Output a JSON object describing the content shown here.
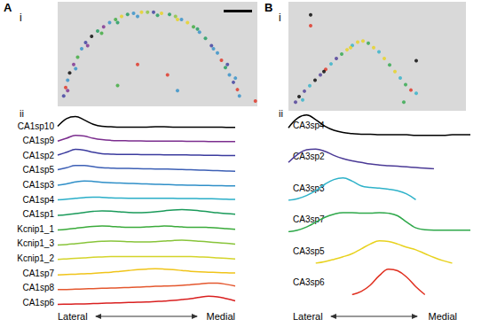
{
  "chart_data": [
    {
      "panel": "A",
      "label": "i",
      "type": "scatter",
      "marker": "circle",
      "tick_labels": false,
      "xlim": [
        0,
        100
      ],
      "ylim": [
        0,
        100
      ],
      "x": [
        3,
        4,
        5,
        6,
        8,
        10,
        12,
        14,
        17,
        20,
        23,
        26,
        29,
        32,
        35,
        38,
        42,
        45,
        48,
        52,
        56,
        59,
        62,
        65,
        68,
        71,
        74,
        77,
        80,
        82,
        84,
        86,
        88,
        90,
        91,
        40,
        55,
        30,
        60,
        99,
        5,
        9,
        15,
        22,
        30,
        40,
        50,
        60,
        70,
        78,
        85,
        89
      ],
      "y": [
        10,
        18,
        25,
        32,
        40,
        47,
        55,
        61,
        67,
        72,
        76,
        80,
        83,
        86,
        88,
        89,
        90,
        90,
        90,
        89,
        88,
        86,
        83,
        80,
        76,
        71,
        65,
        58,
        51,
        44,
        37,
        30,
        23,
        16,
        10,
        40,
        30,
        20,
        15,
        5,
        15,
        36,
        58,
        70,
        80,
        86,
        87,
        83,
        74,
        55,
        40,
        27
      ],
      "colors": [
        "#3b3b9e",
        "#e03020",
        "#2f8fc8",
        "#000000",
        "#7b2d8e",
        "#3aaa3a",
        "#2f8fc8",
        "#3b3b9e",
        "#000000",
        "#1a9a5a",
        "#7b2d8e",
        "#2f8fc8",
        "#3aaa3a",
        "#e8d21e",
        "#1a9a5a",
        "#2f8fc8",
        "#e8d21e",
        "#88c43a",
        "#3b3b9e",
        "#e8d21e",
        "#1a9a5a",
        "#88c43a",
        "#2f8fc8",
        "#e8d21e",
        "#3aaa3a",
        "#2f8fc8",
        "#1a9a5a",
        "#3b3b9e",
        "#2f8fc8",
        "#e03020",
        "#1a9a5a",
        "#2f8fc8",
        "#3b3b9e",
        "#e03020",
        "#2f8fc8",
        "#e03020",
        "#e03020",
        "#3aaa3a",
        "#2f8fc8",
        "#e03020",
        "#7b2d8e",
        "#2f8fc8",
        "#7b2d8e",
        "#3aaa3a",
        "#1a9a5a",
        "#2f8fc8",
        "#1a9a5a",
        "#e8d21e",
        "#1a9a5a",
        "#2f8fc8",
        "#3b3b9e",
        "#2f8fc8"
      ]
    },
    {
      "label": "ii",
      "type": "line",
      "line_style": "solid",
      "tick_labels": false,
      "xlim": [
        0,
        1
      ],
      "ylim": [
        0,
        1
      ],
      "annotations": [
        "Lateral",
        "Medial"
      ],
      "x": [
        0,
        0.05,
        0.1,
        0.15,
        0.2,
        0.25,
        0.3,
        0.35,
        0.4,
        0.45,
        0.5,
        0.55,
        0.6,
        0.65,
        0.7,
        0.75,
        0.8,
        0.85,
        0.9,
        0.95,
        1
      ],
      "series": [
        {
          "name": "CA1sp10",
          "color": "#000000",
          "values": [
            0.15,
            0.7,
            0.85,
            0.6,
            0.3,
            0.15,
            0.12,
            0.1,
            0.1,
            0.1,
            0.1,
            0.12,
            0.12,
            0.1,
            0.1,
            0.1,
            0.1,
            0.1,
            0.1,
            0.08,
            0.08
          ]
        },
        {
          "name": "CA1sp9",
          "color": "#7b2d8e",
          "values": [
            0.15,
            0.35,
            0.55,
            0.5,
            0.35,
            0.25,
            0.2,
            0.18,
            0.17,
            0.16,
            0.15,
            0.15,
            0.15,
            0.14,
            0.14,
            0.13,
            0.13,
            0.12,
            0.12,
            0.12,
            0.12
          ]
        },
        {
          "name": "CA1sp2",
          "color": "#3b3b9e",
          "values": [
            0.2,
            0.4,
            0.6,
            0.55,
            0.4,
            0.3,
            0.27,
            0.25,
            0.25,
            0.24,
            0.23,
            0.23,
            0.22,
            0.22,
            0.22,
            0.2,
            0.2,
            0.18,
            0.18,
            0.17,
            0.17
          ]
        },
        {
          "name": "CA1sp5",
          "color": "#3c5fb5",
          "values": [
            0.2,
            0.35,
            0.5,
            0.5,
            0.42,
            0.35,
            0.32,
            0.3,
            0.3,
            0.28,
            0.27,
            0.26,
            0.25,
            0.24,
            0.22,
            0.2,
            0.18,
            0.16,
            0.14,
            0.12,
            0.1
          ]
        },
        {
          "name": "CA1sp3",
          "color": "#2f8fc8",
          "values": [
            0.15,
            0.25,
            0.38,
            0.45,
            0.42,
            0.36,
            0.32,
            0.3,
            0.28,
            0.26,
            0.24,
            0.22,
            0.2,
            0.18,
            0.16,
            0.15,
            0.14,
            0.13,
            0.12,
            0.11,
            0.1
          ]
        },
        {
          "name": "CA1sp4",
          "color": "#2aaec8",
          "values": [
            0.15,
            0.2,
            0.26,
            0.32,
            0.35,
            0.33,
            0.3,
            0.28,
            0.27,
            0.27,
            0.27,
            0.27,
            0.26,
            0.26,
            0.25,
            0.25,
            0.24,
            0.23,
            0.22,
            0.2,
            0.18
          ]
        },
        {
          "name": "CA1sp1",
          "color": "#1a9a5a",
          "values": [
            0.1,
            0.15,
            0.22,
            0.3,
            0.38,
            0.42,
            0.4,
            0.35,
            0.3,
            0.28,
            0.3,
            0.35,
            0.42,
            0.48,
            0.5,
            0.48,
            0.42,
            0.35,
            0.28,
            0.22,
            0.18
          ]
        },
        {
          "name": "Kcnip1_1",
          "color": "#3aaa3a",
          "values": [
            0.1,
            0.15,
            0.22,
            0.3,
            0.36,
            0.38,
            0.36,
            0.32,
            0.3,
            0.3,
            0.32,
            0.35,
            0.38,
            0.36,
            0.32,
            0.3,
            0.3,
            0.28,
            0.25,
            0.2,
            0.15
          ]
        },
        {
          "name": "Kcnip1_3",
          "color": "#88c43a",
          "values": [
            0.08,
            0.12,
            0.18,
            0.24,
            0.3,
            0.34,
            0.36,
            0.35,
            0.32,
            0.3,
            0.3,
            0.32,
            0.36,
            0.4,
            0.42,
            0.4,
            0.35,
            0.3,
            0.25,
            0.2,
            0.15
          ]
        },
        {
          "name": "Kcnip1_2",
          "color": "#d4d42a",
          "values": [
            0.1,
            0.14,
            0.18,
            0.22,
            0.26,
            0.28,
            0.3,
            0.3,
            0.3,
            0.3,
            0.3,
            0.3,
            0.3,
            0.3,
            0.3,
            0.3,
            0.28,
            0.26,
            0.22,
            0.18,
            0.14
          ]
        },
        {
          "name": "CA1sp7",
          "color": "#f0c419",
          "values": [
            0.05,
            0.08,
            0.1,
            0.13,
            0.16,
            0.2,
            0.24,
            0.3,
            0.36,
            0.42,
            0.46,
            0.48,
            0.46,
            0.42,
            0.36,
            0.3,
            0.26,
            0.24,
            0.22,
            0.2,
            0.18
          ]
        },
        {
          "name": "CA1sp8",
          "color": "#e4572e",
          "values": [
            0.05,
            0.06,
            0.08,
            0.1,
            0.12,
            0.14,
            0.16,
            0.18,
            0.2,
            0.22,
            0.25,
            0.28,
            0.3,
            0.32,
            0.35,
            0.4,
            0.45,
            0.5,
            0.5,
            0.42,
            0.3
          ]
        },
        {
          "name": "CA1sp6",
          "color": "#d92020",
          "values": [
            0.05,
            0.06,
            0.07,
            0.08,
            0.1,
            0.12,
            0.14,
            0.16,
            0.18,
            0.2,
            0.22,
            0.25,
            0.28,
            0.32,
            0.38,
            0.45,
            0.55,
            0.62,
            0.58,
            0.45,
            0.3
          ]
        }
      ]
    },
    {
      "panel": "B",
      "label": "i",
      "type": "scatter",
      "marker": "circle",
      "tick_labels": false,
      "xlim": [
        0,
        100
      ],
      "ylim": [
        0,
        100
      ],
      "x": [
        4,
        6,
        9,
        12,
        15,
        18,
        21,
        24,
        27,
        30,
        33,
        36,
        39,
        42,
        45,
        48,
        51,
        54,
        57,
        60,
        63,
        66,
        69,
        72,
        12.5,
        12.5,
        72,
        65,
        8,
        20,
        35
      ],
      "y": [
        8,
        13,
        18,
        23,
        28,
        33,
        38,
        43,
        48,
        52,
        56,
        60,
        63,
        64,
        62,
        58,
        54,
        48,
        42,
        36,
        30,
        24,
        19,
        16,
        88,
        78,
        46,
        8,
        10,
        36,
        58
      ],
      "colors": [
        "#4b3a96",
        "#000000",
        "#4b3a96",
        "#2fb2c9",
        "#000000",
        "#4b3a96",
        "#e03020",
        "#2fb2c9",
        "#4b3a96",
        "#2ea84a",
        "#e8d21e",
        "#2fb2c9",
        "#e8d21e",
        "#e8d21e",
        "#2ea84a",
        "#e8d21e",
        "#2fb2c9",
        "#e8d21e",
        "#2ea84a",
        "#e8d21e",
        "#2fb2c9",
        "#2ea84a",
        "#e03020",
        "#2fb2c9",
        "#000000",
        "#e03020",
        "#000000",
        "#2ea84a",
        "#2fb2c9",
        "#000000",
        "#e8d21e"
      ]
    },
    {
      "label": "ii",
      "type": "line",
      "line_style": "solid",
      "tick_labels": false,
      "xlim": [
        0,
        1
      ],
      "ylim": [
        0,
        1
      ],
      "annotations": [
        "Lateral",
        "Medial"
      ],
      "x": [
        0,
        0.05,
        0.1,
        0.15,
        0.2,
        0.25,
        0.3,
        0.35,
        0.4,
        0.45,
        0.5,
        0.55,
        0.6,
        0.65,
        0.7,
        0.75,
        0.8,
        0.85,
        0.9,
        0.95,
        1
      ],
      "series": [
        {
          "name": "CA3sp4",
          "color": "#000000",
          "values": [
            0.3,
            0.6,
            0.7,
            0.55,
            0.35,
            0.22,
            0.15,
            0.12,
            0.1,
            0.1,
            0.08,
            0.08,
            0.08,
            0.08,
            0.06,
            0.06,
            0.06,
            0.06,
            0.08,
            0.08,
            0.08
          ]
        },
        {
          "name": "CA3sp2",
          "color": "#4b3a96",
          "values": [
            0.2,
            0.45,
            0.6,
            0.62,
            0.55,
            0.42,
            0.32,
            0.25,
            0.2,
            0.15,
            0.12,
            0.1,
            0.08,
            0.06,
            0.04,
            0.02,
            0,
            null,
            null,
            null,
            null
          ]
        },
        {
          "name": "CA3sp3",
          "color": "#2fb2c9",
          "values": [
            0,
            0.05,
            0.15,
            0.3,
            0.5,
            0.65,
            0.7,
            0.6,
            0.45,
            0.4,
            0.38,
            0.35,
            0.3,
            0.2,
            0.02,
            null,
            null,
            null,
            null,
            null,
            null
          ]
        },
        {
          "name": "CA3sp7",
          "color": "#2ea84a",
          "values": [
            0,
            0.05,
            0.15,
            0.3,
            0.45,
            0.55,
            0.6,
            0.6,
            0.58,
            0.58,
            0.6,
            0.58,
            0.5,
            0.3,
            0.12,
            0.06,
            0.05,
            0.05,
            0.05,
            0.05,
            0.05
          ]
        },
        {
          "name": "CA3sp5",
          "color": "#e8d21e",
          "values": [
            null,
            null,
            null,
            0,
            0.05,
            0.12,
            0.2,
            0.3,
            0.45,
            0.6,
            0.7,
            0.68,
            0.6,
            0.5,
            0.42,
            0.3,
            0.18,
            0.08,
            0,
            null,
            null
          ]
        },
        {
          "name": "CA3sp6",
          "color": "#e03020",
          "values": [
            null,
            null,
            null,
            null,
            null,
            null,
            null,
            0,
            0.1,
            0.3,
            0.6,
            0.8,
            0.75,
            0.55,
            0.25,
            0,
            null,
            null,
            null,
            null,
            null
          ]
        }
      ]
    }
  ]
}
